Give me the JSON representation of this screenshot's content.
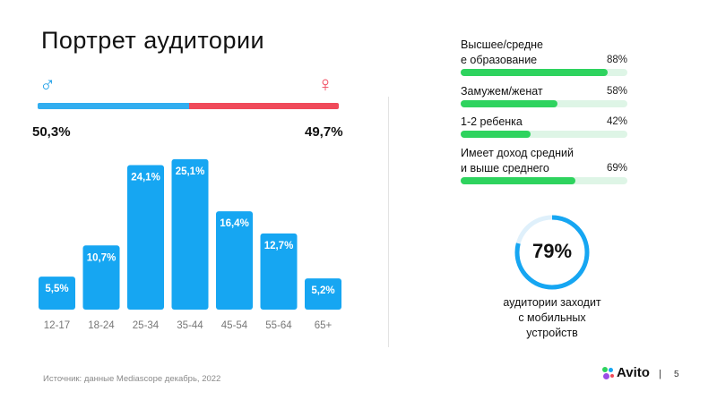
{
  "title": "Портрет  аудитории",
  "gender": {
    "male_symbol": "♂",
    "female_symbol": "♀",
    "male_pct_label": "50,3%",
    "female_pct_label": "49,7%",
    "male_value": 50.3,
    "female_value": 49.7,
    "male_color": "#32aef0",
    "female_color": "#f04a5a"
  },
  "chart_data": {
    "type": "bar",
    "categories": [
      "12-17",
      "18-24",
      "25-34",
      "35-44",
      "45-54",
      "55-64",
      "65+"
    ],
    "values": [
      5.5,
      10.7,
      24.1,
      25.1,
      16.4,
      12.7,
      5.2
    ],
    "data_labels": [
      "5,5%",
      "10,7%",
      "24,1%",
      "25,1%",
      "16,4%",
      "12,7%",
      "5,2%"
    ],
    "color": "#16a6f2",
    "grid": false,
    "legend": "none"
  },
  "stats": [
    {
      "label_lines": [
        "Высшее/средне",
        "е образование"
      ],
      "value_label": "88%",
      "value": 88
    },
    {
      "label_lines": [
        "Замужем/женат"
      ],
      "value_label": "58%",
      "value": 58
    },
    {
      "label_lines": [
        "1-2 ребенка"
      ],
      "value_label": "42%",
      "value": 42
    },
    {
      "label_lines": [
        "Имеет доход средний",
        "и выше среднего"
      ],
      "value_label": "69%",
      "value": 69
    }
  ],
  "stats_colors": {
    "fill": "#2ed35e",
    "track": "#def5e6"
  },
  "mobile": {
    "value_label": "79%",
    "value": 79,
    "caption_lines": [
      "аудитории заходит",
      "с мобильных",
      "устройств"
    ],
    "color": "#16a6f2",
    "track_color": "#dff0fb"
  },
  "footer": {
    "source": "Источник: данные Mediascope декабрь, 2022",
    "logo": "Avito",
    "separator": "|",
    "page": "5"
  }
}
